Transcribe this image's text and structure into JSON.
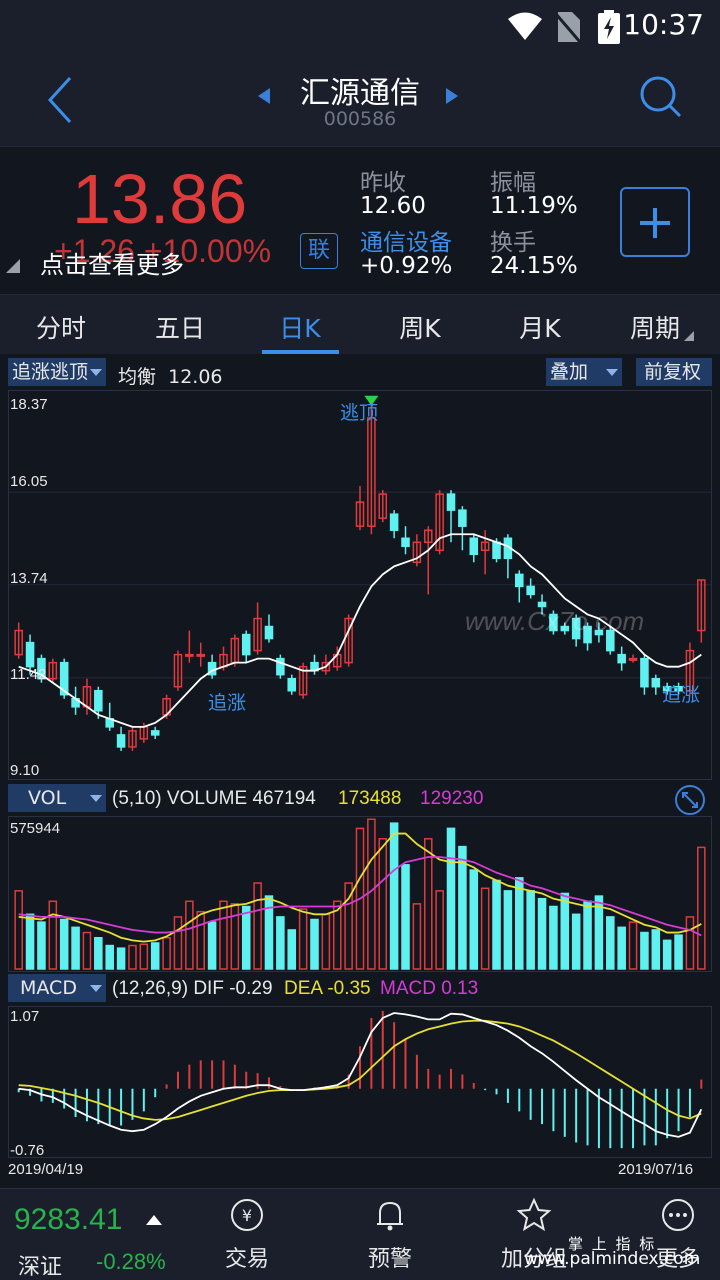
{
  "status": {
    "time": "10:37"
  },
  "header": {
    "title": "汇源通信",
    "code": "000586"
  },
  "quote": {
    "price": "13.86",
    "change": "+1.26",
    "change_pct": "+10.00%",
    "more_tip": "点击查看更多",
    "link_btn": "联",
    "prev_close_label": "昨收",
    "prev_close": "12.60",
    "amplitude_label": "振幅",
    "amplitude": "11.19%",
    "sector": "通信设备",
    "sector_change": "+0.92%",
    "turnover_label": "换手",
    "turnover": "24.15%"
  },
  "tabs": [
    "分时",
    "五日",
    "日K",
    "周K",
    "月K",
    "周期"
  ],
  "active_tab": "日K",
  "kline_bar": {
    "indicator": "追涨逃顶",
    "balance_label": "均衡",
    "balance_value": "12.06",
    "overlay": "叠加",
    "adjust": "前复权"
  },
  "price_axis": [
    "18.37",
    "16.05",
    "13.74",
    "11.42",
    "9.10"
  ],
  "annotations": {
    "top": "逃顶",
    "chase1": "追涨",
    "chase2": "追涨",
    "watermark_site": "www.Cx7o.com"
  },
  "vol_bar": {
    "name": "VOL",
    "params": "(5,10)",
    "volume_label": "VOLUME",
    "volume": "467194",
    "ma5": "173488",
    "ma10": "129230",
    "max": "575944"
  },
  "macd_bar": {
    "name": "MACD",
    "params": "(12,26,9)",
    "dif_label": "DIF",
    "dif": "-0.29",
    "dea_label": "DEA",
    "dea": "-0.35",
    "macd_label": "MACD",
    "macd": "0.13",
    "max": "1.07",
    "min": "-0.76"
  },
  "dates": {
    "start": "2019/04/19",
    "end": "2019/07/16"
  },
  "bottom": {
    "index_value": "9283.41",
    "index_name": "深证",
    "index_change": "-0.28%",
    "nav": [
      "交易",
      "预警",
      "加分组",
      "更多"
    ],
    "watermark_cn": "掌 上 指 标",
    "watermark_url": "www.palmindex.com"
  },
  "colors": {
    "up": "#e03b3b",
    "down": "#5ff0f0",
    "accent": "#3b8fe8",
    "ma5": "#e6e033",
    "ma10": "#d63bd6"
  },
  "chart_data": {
    "type": "candlestick",
    "candles": [
      {
        "o": 12.0,
        "c": 12.6,
        "h": 12.8,
        "l": 11.9
      },
      {
        "o": 12.3,
        "c": 11.7,
        "h": 12.5,
        "l": 11.5
      },
      {
        "o": 11.9,
        "c": 11.4,
        "h": 12.0,
        "l": 11.3
      },
      {
        "o": 11.4,
        "c": 11.8,
        "h": 11.9,
        "l": 11.3
      },
      {
        "o": 11.8,
        "c": 11.0,
        "h": 11.9,
        "l": 10.9
      },
      {
        "o": 10.9,
        "c": 10.7,
        "h": 11.2,
        "l": 10.5
      },
      {
        "o": 10.7,
        "c": 11.2,
        "h": 11.4,
        "l": 10.5
      },
      {
        "o": 11.1,
        "c": 10.6,
        "h": 11.2,
        "l": 10.4
      },
      {
        "o": 10.4,
        "c": 10.2,
        "h": 10.8,
        "l": 10.1
      },
      {
        "o": 10.0,
        "c": 9.7,
        "h": 10.2,
        "l": 9.6
      },
      {
        "o": 9.7,
        "c": 10.1,
        "h": 10.2,
        "l": 9.6
      },
      {
        "o": 9.9,
        "c": 10.2,
        "h": 10.3,
        "l": 9.8
      },
      {
        "o": 10.1,
        "c": 10.0,
        "h": 10.2,
        "l": 9.9
      },
      {
        "o": 10.5,
        "c": 10.9,
        "h": 11.0,
        "l": 10.4
      },
      {
        "o": 11.2,
        "c": 12.0,
        "h": 12.1,
        "l": 11.1
      },
      {
        "o": 12.0,
        "c": 12.0,
        "h": 12.6,
        "l": 11.8
      },
      {
        "o": 12.0,
        "c": 12.0,
        "h": 12.3,
        "l": 11.7
      },
      {
        "o": 11.8,
        "c": 11.5,
        "h": 12.0,
        "l": 11.4
      },
      {
        "o": 11.7,
        "c": 12.0,
        "h": 12.2,
        "l": 11.6
      },
      {
        "o": 11.8,
        "c": 12.4,
        "h": 12.5,
        "l": 11.7
      },
      {
        "o": 12.5,
        "c": 12.0,
        "h": 12.6,
        "l": 11.8
      },
      {
        "o": 12.1,
        "c": 12.9,
        "h": 13.3,
        "l": 12.0
      },
      {
        "o": 12.7,
        "c": 12.4,
        "h": 13.0,
        "l": 12.3
      },
      {
        "o": 11.9,
        "c": 11.5,
        "h": 12.0,
        "l": 11.4
      },
      {
        "o": 11.4,
        "c": 11.1,
        "h": 11.5,
        "l": 11.0
      },
      {
        "o": 11.0,
        "c": 11.7,
        "h": 11.8,
        "l": 10.9
      },
      {
        "o": 11.8,
        "c": 11.6,
        "h": 12.0,
        "l": 11.5
      },
      {
        "o": 11.6,
        "c": 11.8,
        "h": 12.0,
        "l": 11.5
      },
      {
        "o": 11.7,
        "c": 12.0,
        "h": 12.2,
        "l": 11.6
      },
      {
        "o": 11.8,
        "c": 12.9,
        "h": 13.0,
        "l": 11.7
      },
      {
        "o": 15.2,
        "c": 15.8,
        "h": 16.2,
        "l": 15.1
      },
      {
        "o": 15.2,
        "c": 17.9,
        "h": 18.3,
        "l": 15.0
      },
      {
        "o": 15.4,
        "c": 16.0,
        "h": 16.1,
        "l": 15.3
      },
      {
        "o": 15.5,
        "c": 15.1,
        "h": 15.6,
        "l": 14.9
      },
      {
        "o": 14.9,
        "c": 14.7,
        "h": 15.2,
        "l": 14.5
      },
      {
        "o": 14.3,
        "c": 14.8,
        "h": 15.0,
        "l": 14.2
      },
      {
        "o": 14.8,
        "c": 15.1,
        "h": 15.2,
        "l": 13.5
      },
      {
        "o": 14.6,
        "c": 16.0,
        "h": 16.1,
        "l": 14.5
      },
      {
        "o": 16.0,
        "c": 15.6,
        "h": 16.1,
        "l": 14.8
      },
      {
        "o": 15.6,
        "c": 15.2,
        "h": 15.7,
        "l": 14.6
      },
      {
        "o": 14.9,
        "c": 14.5,
        "h": 15.0,
        "l": 14.3
      },
      {
        "o": 14.6,
        "c": 14.8,
        "h": 15.1,
        "l": 14.0
      },
      {
        "o": 14.8,
        "c": 14.4,
        "h": 14.9,
        "l": 14.3
      },
      {
        "o": 14.9,
        "c": 14.4,
        "h": 15.0,
        "l": 13.9
      },
      {
        "o": 14.0,
        "c": 13.7,
        "h": 14.1,
        "l": 13.3
      },
      {
        "o": 13.7,
        "c": 13.5,
        "h": 13.9,
        "l": 13.4
      },
      {
        "o": 13.3,
        "c": 13.2,
        "h": 13.5,
        "l": 13.0
      },
      {
        "o": 13.0,
        "c": 12.6,
        "h": 13.1,
        "l": 12.5
      },
      {
        "o": 12.7,
        "c": 12.6,
        "h": 12.8,
        "l": 12.5
      },
      {
        "o": 12.9,
        "c": 12.4,
        "h": 13.0,
        "l": 12.2
      },
      {
        "o": 12.7,
        "c": 12.3,
        "h": 12.8,
        "l": 12.1
      },
      {
        "o": 12.6,
        "c": 12.5,
        "h": 12.8,
        "l": 12.3
      },
      {
        "o": 12.6,
        "c": 12.1,
        "h": 12.7,
        "l": 12.0
      },
      {
        "o": 12.0,
        "c": 11.8,
        "h": 12.2,
        "l": 11.6
      },
      {
        "o": 11.9,
        "c": 11.9,
        "h": 12.0,
        "l": 11.8
      },
      {
        "o": 11.9,
        "c": 11.2,
        "h": 12.0,
        "l": 11.0
      },
      {
        "o": 11.4,
        "c": 11.2,
        "h": 11.5,
        "l": 11.0
      },
      {
        "o": 11.2,
        "c": 11.1,
        "h": 11.3,
        "l": 11.0
      },
      {
        "o": 11.2,
        "c": 11.1,
        "h": 11.3,
        "l": 11.0
      },
      {
        "o": 11.1,
        "c": 12.1,
        "h": 12.3,
        "l": 11.0
      },
      {
        "o": 12.6,
        "c": 13.86,
        "h": 13.86,
        "l": 12.3
      }
    ],
    "ma": [
      11.7,
      11.6,
      11.5,
      11.3,
      11.1,
      10.9,
      10.7,
      10.5,
      10.4,
      10.3,
      10.2,
      10.2,
      10.3,
      10.5,
      10.8,
      11.1,
      11.4,
      11.6,
      11.7,
      11.8,
      11.8,
      11.9,
      11.9,
      11.8,
      11.7,
      11.6,
      11.6,
      11.7,
      12.0,
      12.6,
      13.2,
      13.7,
      14.0,
      14.2,
      14.3,
      14.4,
      14.6,
      14.9,
      15.0,
      15.0,
      15.0,
      14.9,
      14.8,
      14.7,
      14.5,
      14.2,
      14.0,
      13.7,
      13.4,
      13.2,
      13.0,
      12.9,
      12.7,
      12.5,
      12.3,
      12.0,
      11.8,
      11.7,
      11.7,
      11.8,
      12.0
    ],
    "volume": [
      300,
      210,
      180,
      260,
      190,
      160,
      140,
      120,
      90,
      80,
      90,
      95,
      100,
      120,
      200,
      260,
      220,
      180,
      260,
      250,
      240,
      330,
      280,
      200,
      150,
      230,
      190,
      210,
      260,
      330,
      540,
      575,
      500,
      560,
      400,
      250,
      500,
      300,
      540,
      470,
      380,
      310,
      340,
      300,
      350,
      300,
      270,
      240,
      290,
      210,
      260,
      280,
      200,
      160,
      180,
      140,
      150,
      110,
      130,
      200,
      467
    ],
    "vol_ma5": [
      200,
      195,
      190,
      210,
      200,
      185,
      170,
      155,
      140,
      120,
      110,
      105,
      110,
      125,
      150,
      180,
      210,
      225,
      235,
      245,
      250,
      265,
      270,
      255,
      235,
      220,
      210,
      210,
      225,
      270,
      350,
      420,
      470,
      520,
      520,
      480,
      450,
      420,
      410,
      410,
      390,
      360,
      340,
      320,
      310,
      300,
      290,
      270,
      260,
      250,
      240,
      240,
      230,
      210,
      190,
      170,
      160,
      140,
      140,
      150,
      173
    ],
    "vol_ma10": [
      210,
      205,
      200,
      200,
      200,
      195,
      190,
      180,
      170,
      160,
      150,
      145,
      140,
      140,
      145,
      155,
      170,
      185,
      195,
      205,
      215,
      225,
      235,
      240,
      240,
      240,
      240,
      240,
      240,
      250,
      270,
      300,
      340,
      380,
      410,
      420,
      430,
      430,
      425,
      420,
      410,
      390,
      370,
      355,
      340,
      320,
      310,
      295,
      280,
      270,
      260,
      255,
      245,
      230,
      215,
      200,
      185,
      170,
      160,
      150,
      129
    ],
    "dif": [
      0.0,
      -0.02,
      -0.08,
      -0.12,
      -0.2,
      -0.3,
      -0.38,
      -0.45,
      -0.52,
      -0.58,
      -0.6,
      -0.58,
      -0.5,
      -0.4,
      -0.28,
      -0.18,
      -0.1,
      -0.05,
      0.0,
      0.02,
      0.02,
      0.05,
      0.05,
      0.0,
      -0.02,
      -0.02,
      0.0,
      0.02,
      0.05,
      0.15,
      0.45,
      0.8,
      1.0,
      1.07,
      1.05,
      1.02,
      0.98,
      0.98,
      1.06,
      1.05,
      1.0,
      0.95,
      0.9,
      0.82,
      0.72,
      0.6,
      0.5,
      0.38,
      0.25,
      0.12,
      0.0,
      -0.12,
      -0.22,
      -0.32,
      -0.42,
      -0.5,
      -0.6,
      -0.65,
      -0.68,
      -0.62,
      -0.29
    ],
    "dea": [
      0.05,
      0.04,
      0.01,
      -0.02,
      -0.06,
      -0.1,
      -0.15,
      -0.2,
      -0.26,
      -0.32,
      -0.38,
      -0.42,
      -0.44,
      -0.43,
      -0.4,
      -0.35,
      -0.3,
      -0.25,
      -0.2,
      -0.15,
      -0.1,
      -0.06,
      -0.03,
      -0.02,
      -0.02,
      -0.02,
      -0.01,
      0.0,
      0.02,
      0.05,
      0.15,
      0.3,
      0.45,
      0.6,
      0.7,
      0.78,
      0.84,
      0.88,
      0.92,
      0.95,
      0.96,
      0.96,
      0.94,
      0.92,
      0.88,
      0.82,
      0.75,
      0.68,
      0.59,
      0.5,
      0.4,
      0.3,
      0.2,
      0.1,
      0.0,
      -0.1,
      -0.2,
      -0.3,
      -0.38,
      -0.42,
      -0.35
    ],
    "macd": [
      -0.05,
      -0.1,
      -0.18,
      -0.2,
      -0.28,
      -0.4,
      -0.46,
      -0.5,
      -0.52,
      -0.52,
      -0.44,
      -0.32,
      -0.12,
      0.06,
      0.24,
      0.34,
      0.4,
      0.4,
      0.4,
      0.34,
      0.24,
      0.22,
      0.16,
      0.04,
      0.0,
      0.0,
      0.02,
      0.04,
      0.06,
      0.2,
      0.6,
      1.0,
      1.1,
      0.94,
      0.7,
      0.48,
      0.28,
      0.2,
      0.28,
      0.2,
      0.08,
      -0.02,
      -0.08,
      -0.2,
      -0.32,
      -0.44,
      -0.5,
      -0.6,
      -0.68,
      -0.76,
      -0.8,
      -0.84,
      -0.84,
      -0.84,
      -0.84,
      -0.8,
      -0.8,
      -0.7,
      -0.6,
      -0.4,
      0.13
    ]
  }
}
